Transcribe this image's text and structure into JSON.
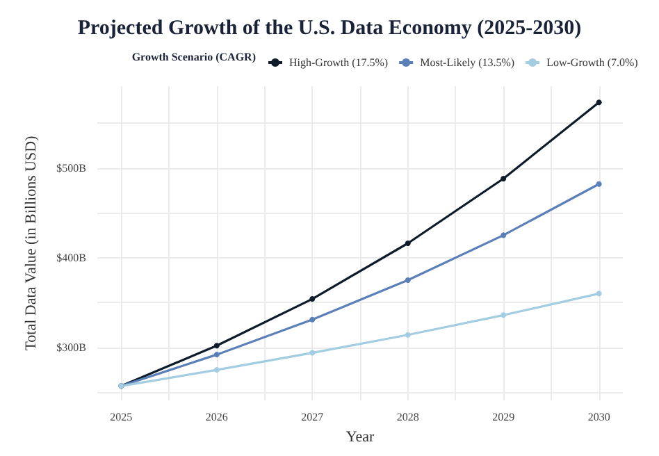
{
  "chart_data": {
    "type": "line",
    "title": "Projected Growth of the U.S. Data Economy (2025-2030)",
    "xlabel": "Year",
    "ylabel": "Total Data Value (in Billions USD)",
    "legend_title": "Growth Scenario (CAGR)",
    "legend": "top",
    "grid": true,
    "marker": "circle",
    "line_style": "solid",
    "x": [
      2025,
      2026,
      2027,
      2028,
      2029,
      2030
    ],
    "series": [
      {
        "name": "High-Growth (17.5%)",
        "color": "#0d1b2a",
        "values": [
          257,
          302,
          354,
          416,
          488,
          573
        ]
      },
      {
        "name": "Most-Likely (13.5%)",
        "color": "#5b7fb9",
        "values": [
          257,
          292,
          331,
          375,
          425,
          482
        ]
      },
      {
        "name": "Low-Growth (7.0%)",
        "color": "#a3cde0",
        "values": [
          257,
          275,
          294,
          314,
          336,
          360
        ]
      }
    ],
    "xlim": [
      2024.75,
      2030.25
    ],
    "xticks": [
      2025,
      {
        "value": 2025.5,
        "label": null
      },
      2026,
      {
        "value": 2026.5,
        "label": null
      },
      2027,
      {
        "value": 2027.5,
        "label": null
      },
      2028,
      {
        "value": 2028.5,
        "label": null
      },
      2029,
      {
        "value": 2029.5,
        "label": null
      },
      2030
    ],
    "ylim": [
      241,
      591
    ],
    "yticks": [
      {
        "value": 250,
        "label": null
      },
      {
        "value": 300,
        "label": "$300B"
      },
      {
        "value": 350,
        "label": null
      },
      {
        "value": 400,
        "label": "$400B"
      },
      {
        "value": 450,
        "label": null
      },
      {
        "value": 500,
        "label": "$500B"
      },
      {
        "value": 550,
        "label": null
      }
    ]
  }
}
